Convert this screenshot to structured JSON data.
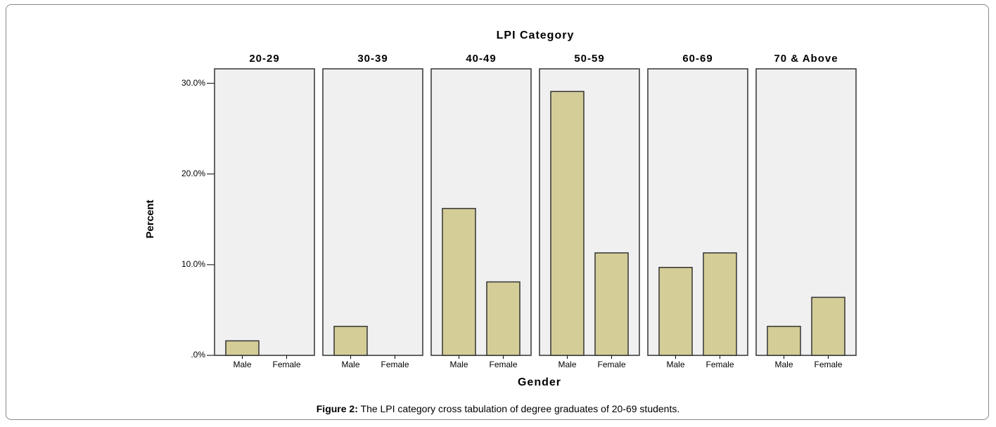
{
  "chart_data": {
    "type": "bar",
    "title": "LPI Category",
    "xlabel": "Gender",
    "ylabel": "Percent",
    "categories": [
      "Male",
      "Female"
    ],
    "panels": [
      {
        "name": "20-29",
        "values": [
          1.6,
          0
        ]
      },
      {
        "name": "30-39",
        "values": [
          3.2,
          0
        ]
      },
      {
        "name": "40-49",
        "values": [
          16.2,
          8.1
        ]
      },
      {
        "name": "50-59",
        "values": [
          29.1,
          11.3
        ]
      },
      {
        "name": "60-69",
        "values": [
          9.7,
          11.3
        ]
      },
      {
        "name": "70 & Above",
        "values": [
          3.2,
          6.4
        ]
      }
    ],
    "color": "#d4cd97",
    "ylim": [
      0,
      31.6
    ],
    "yticks": [
      {
        "value": 0,
        "label": ".0%"
      },
      {
        "value": 10,
        "label": "10.0%"
      },
      {
        "value": 20,
        "label": "20.0%"
      },
      {
        "value": 30,
        "label": "30.0%"
      }
    ]
  },
  "caption": {
    "label": "Figure 2:",
    "text": " The LPI category cross tabulation of degree graduates of 20-69 students."
  }
}
